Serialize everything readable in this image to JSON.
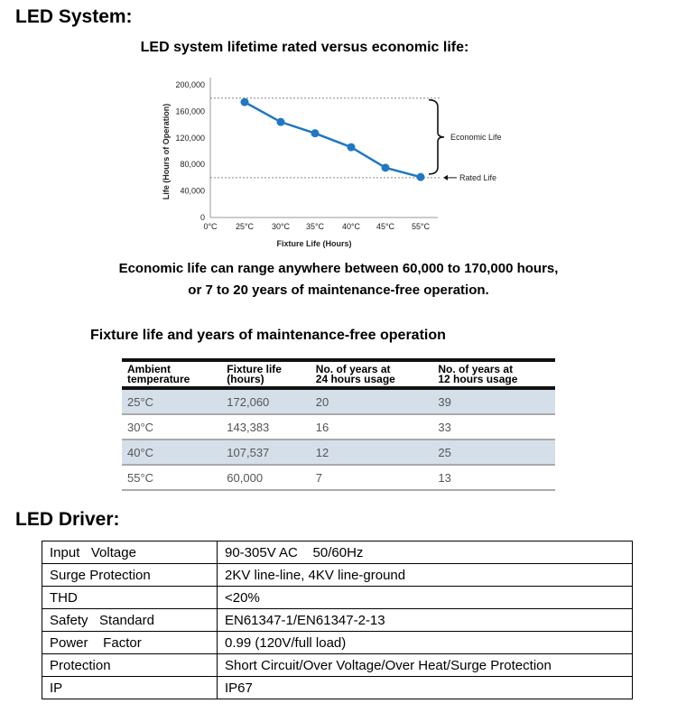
{
  "headings": {
    "system": "LED System:",
    "driver": "LED Driver:"
  },
  "chart_title": "LED system lifetime rated versus economic life:",
  "chart_data": {
    "type": "line",
    "categories": [
      "0°C",
      "25°C",
      "30°C",
      "35°C",
      "40°C",
      "45°C",
      "55°C"
    ],
    "series": [
      {
        "x": [
          "25°C",
          "30°C",
          "35°C",
          "40°C",
          "45°C",
          "55°C"
        ],
        "values": [
          174000,
          144000,
          127000,
          106000,
          75000,
          61000
        ]
      }
    ],
    "ylabel": "Life (Hours of Operation)",
    "xlabel": "Fixture Life (Hours)",
    "ylim": [
      0,
      200000
    ],
    "yticks": [
      "0",
      "40,000",
      "80,000",
      "120,000",
      "160,000",
      "200,000"
    ],
    "ytick_values": [
      0,
      40000,
      80000,
      120000,
      160000,
      200000
    ],
    "reference_lines": [
      180000,
      60000
    ],
    "annotations": [
      "Economic Life",
      "Rated Life"
    ],
    "color": "#1f78c1"
  },
  "caption": [
    "Economic life can range anywhere between 60,000 to 170,000 hours,",
    "or 7 to 20 years of maintenance-free operation."
  ],
  "fixture_table": {
    "title": "Fixture life and years of maintenance-free operation",
    "headers": [
      [
        "Ambient",
        "temperature"
      ],
      [
        "Fixture life",
        "(hours)"
      ],
      [
        "No. of years at",
        "24 hours usage"
      ],
      [
        "No. of years at",
        "12 hours usage"
      ]
    ],
    "rows": [
      [
        "25°C",
        "172,060",
        "20",
        "39"
      ],
      [
        "30°C",
        "143,383",
        "16",
        "33"
      ],
      [
        "40°C",
        "107,537",
        "12",
        "25"
      ],
      [
        "55°C",
        "60,000",
        "7",
        "13"
      ]
    ]
  },
  "driver_table": [
    [
      "Input   Voltage",
      "90-305V AC    50/60Hz"
    ],
    [
      "Surge Protection",
      "2KV line-line, 4KV line-ground"
    ],
    [
      "THD",
      "<20%"
    ],
    [
      "Safety   Standard",
      "EN61347-1/EN61347-2-13"
    ],
    [
      "Power    Factor",
      "0.99 (120V/full load)"
    ],
    [
      "Protection",
      "Short Circuit/Over Voltage/Over Heat/Surge Protection"
    ],
    [
      "IP",
      "IP67"
    ]
  ]
}
